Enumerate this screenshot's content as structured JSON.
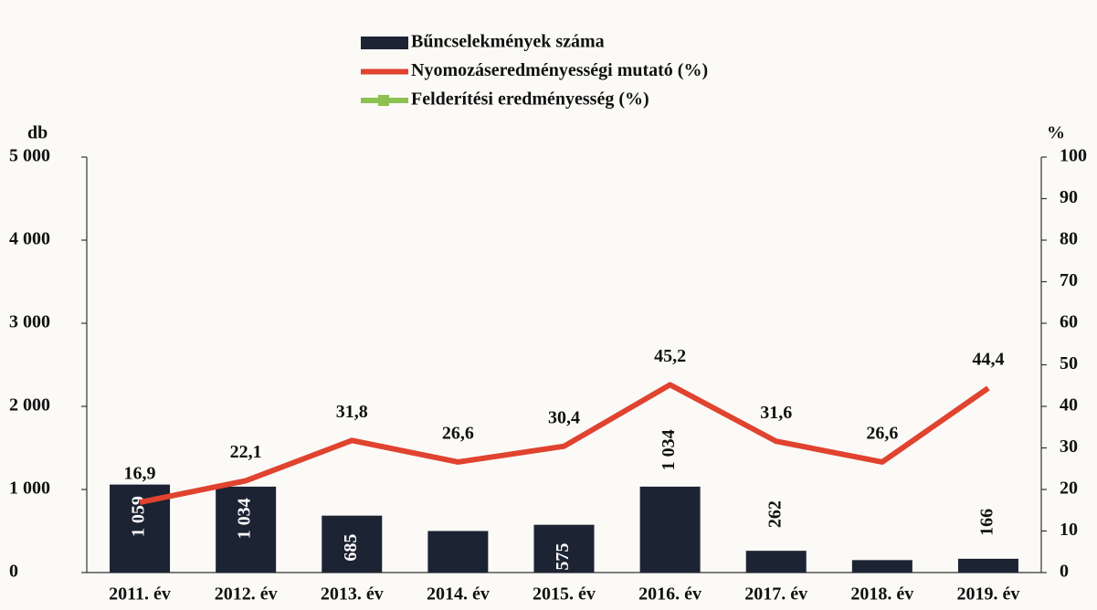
{
  "chart_data": {
    "type": "bar-line",
    "categories": [
      "2011. év",
      "2012. év",
      "2013. év",
      "2014. év",
      "2015. év",
      "2016. év",
      "2017. év",
      "2018. év",
      "2019. év"
    ],
    "series": [
      {
        "name": "Bűncselekmények száma",
        "type": "bar",
        "color": "#1c2333",
        "axis": "y",
        "values": [
          1059,
          1034,
          685,
          500,
          575,
          1034,
          262,
          150,
          166
        ],
        "value_labels": [
          "1 059",
          "1 034",
          "685",
          null,
          "575",
          "1 034",
          "262",
          null,
          "166"
        ]
      },
      {
        "name": "Nyomozáseredményességi mutató (%)",
        "type": "line",
        "color": "#e0432f",
        "axis": "y2",
        "values": [
          16.9,
          22.1,
          31.8,
          26.6,
          30.4,
          45.2,
          31.6,
          26.6,
          44.4
        ],
        "value_labels": [
          "16,9",
          "22,1",
          "31,8",
          "26,6",
          "30,4",
          "45,2",
          "31,6",
          "26,6",
          "44,4"
        ]
      },
      {
        "name": "Felderítési eredményesség (%)",
        "type": "line",
        "color": "#8cc152",
        "axis": "y2",
        "values": [
          null,
          null,
          null,
          null,
          null,
          null,
          null,
          null,
          null
        ]
      }
    ],
    "y_label": "db",
    "y2_label": "%",
    "ylim": [
      0,
      5000
    ],
    "yticks": [
      0,
      {
        "value": 1000,
        "label": "1 000"
      },
      {
        "value": 2000,
        "label": "2 000"
      },
      {
        "value": 3000,
        "label": "3 000"
      },
      {
        "value": 4000,
        "label": "4 000"
      },
      {
        "value": 5000,
        "label": "5 000"
      }
    ],
    "y2lim": [
      0,
      100
    ],
    "y2ticks": [
      0,
      10,
      20,
      30,
      40,
      50,
      60,
      70,
      80,
      90,
      100
    ]
  }
}
